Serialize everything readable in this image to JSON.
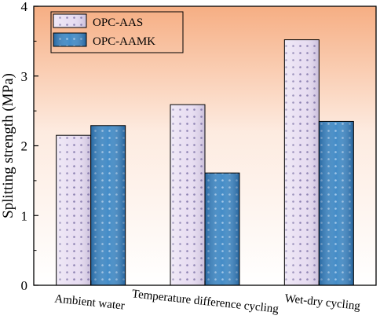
{
  "chart_data": {
    "type": "bar",
    "title": "",
    "xlabel": "",
    "ylabel": "Splitting strength (MPa)",
    "categories": [
      "Ambient water",
      "Temperature difference cycling",
      "Wet-dry cycling"
    ],
    "series": [
      {
        "name": "OPC-AAS",
        "values": [
          2.15,
          2.59,
          3.52
        ],
        "color": "#e8def2",
        "dot_color": "#8a7fb0"
      },
      {
        "name": "OPC-AAMK",
        "values": [
          2.29,
          1.61,
          2.35
        ],
        "color": "#3a86c4",
        "dot_color": "#9cc3e6"
      }
    ],
    "ylim": [
      0,
      4
    ],
    "yticks": [
      "0",
      "1",
      "2",
      "3",
      "4"
    ],
    "grid": false,
    "legend_position": "top-left",
    "background_gradient": [
      "#f6ae83",
      "#fdebe0",
      "#ffffff"
    ]
  }
}
